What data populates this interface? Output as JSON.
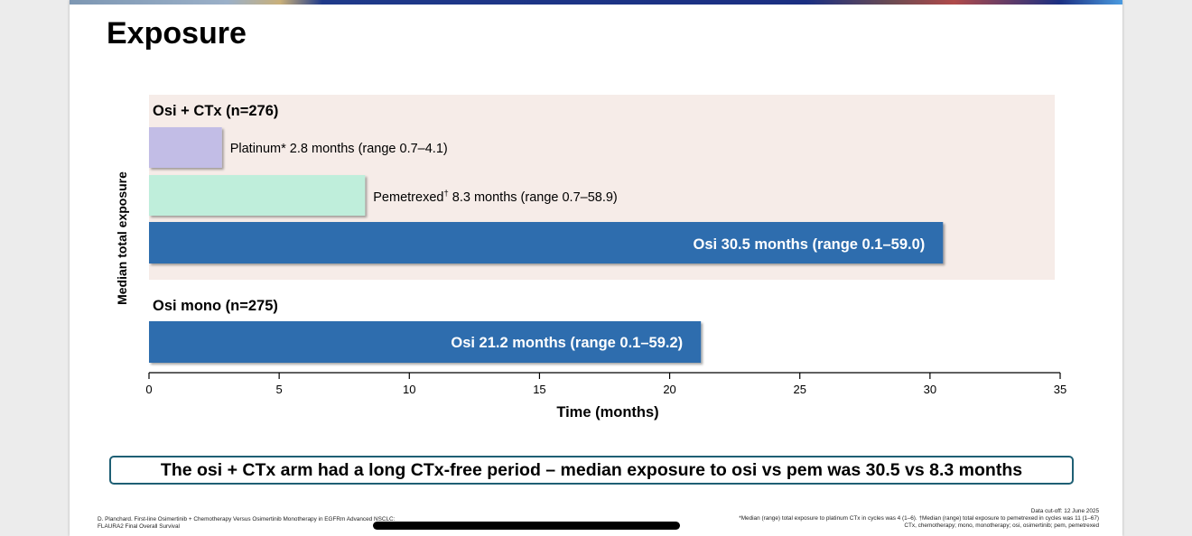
{
  "slide": {
    "title": "Exposure",
    "takeaway": "The osi + CTx arm had a long CTx-free period – median exposure to osi vs pem was 30.5 vs 8.3 months"
  },
  "footer": {
    "citation_line1": "D. Planchard. First-line Osimertinib + Chemotherapy Versus Osimertinib Monotherapy in EGFRm Advanced NSCLC:",
    "citation_line2": "FLAURA2 Final Overall Survival",
    "data_cutoff": "Data cut-off: 12 June 2025",
    "note_line1": "*Median (range) total exposure to platinum CTx in cycles was 4 (1–6). †Median (range) total exposure to pemetrexed in cycles was 11 (1–67)",
    "note_line2": "CTx, chemotherapy; mono, monotherapy; osi, osimertinib; pem, pemetrexed"
  },
  "chart_data": {
    "type": "bar",
    "orientation": "horizontal",
    "xlabel": "Time (months)",
    "ylabel": "Median total exposure",
    "xlim": [
      0,
      35
    ],
    "xticks": [
      0,
      5,
      10,
      15,
      20,
      25,
      30,
      35
    ],
    "groups": [
      {
        "label": "Osi + CTx (n=276)",
        "background": "#f6ece8",
        "bars": [
          {
            "name": "Platinum",
            "value": 2.8,
            "label": "Platinum* 2.8 months (range 0.7–4.1)",
            "color": "#c2bde6",
            "label_position": "outside"
          },
          {
            "name": "Pemetrexed",
            "value": 8.3,
            "label_main": "Pemetrexed",
            "label_sup": "†",
            "label_rest": " 8.3 months (range 0.7–58.9)",
            "color": "#bfeedb",
            "label_position": "outside"
          },
          {
            "name": "Osi",
            "value": 30.5,
            "label": "Osi 30.5 months (range 0.1–59.0)",
            "color": "#2e6dae",
            "label_position": "inside"
          }
        ]
      },
      {
        "label": "Osi mono (n=275)",
        "background": "none",
        "bars": [
          {
            "name": "Osi",
            "value": 21.2,
            "label": "Osi 21.2 months (range 0.1–59.2)",
            "color": "#2e6dae",
            "label_position": "inside"
          }
        ]
      }
    ]
  }
}
